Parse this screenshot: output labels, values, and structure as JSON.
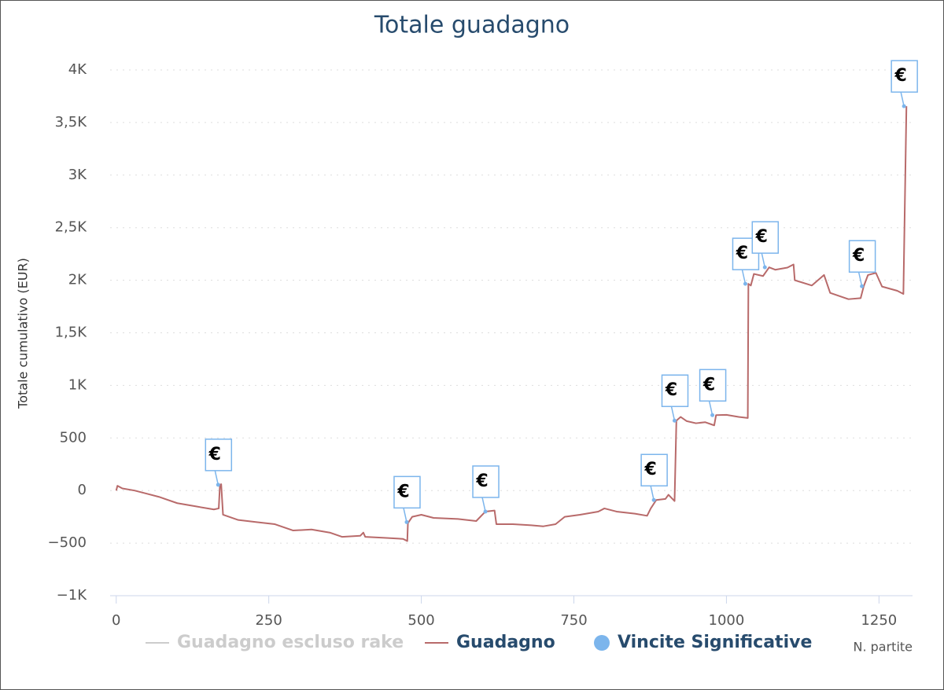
{
  "chart_data": {
    "type": "line",
    "title": "Totale guadagno",
    "y_label": "Totale cumulativo (EUR)",
    "x_label": "N. partite",
    "xlim": [
      -10,
      1305
    ],
    "xticks": [
      0,
      250,
      500,
      750,
      1000,
      1250
    ],
    "ylim": [
      -1000,
      4000
    ],
    "yticks": [
      {
        "value": -1000,
        "label": "−1K"
      },
      {
        "value": -500,
        "label": "−500"
      },
      0,
      500,
      {
        "value": 1000,
        "label": "1K"
      },
      {
        "value": 1500,
        "label": "1,5K"
      },
      {
        "value": 2000,
        "label": "2K"
      },
      {
        "value": 2500,
        "label": "2,5K"
      },
      {
        "value": 3000,
        "label": "3K"
      },
      {
        "value": 3500,
        "label": "3,5K"
      },
      {
        "value": 4000,
        "label": "4K"
      }
    ],
    "grid": true,
    "legend": "bottom",
    "series": [
      {
        "name": "Guadagno escluso rake",
        "color": "#cccccc",
        "visible": false
      },
      {
        "name": "Guadagno",
        "color": "#b86a6a",
        "type": "line",
        "x": [
          0,
          2,
          10,
          30,
          50,
          70,
          100,
          130,
          160,
          168,
          170,
          172,
          175,
          200,
          230,
          260,
          290,
          320,
          350,
          370,
          400,
          405,
          408,
          440,
          470,
          477,
          478,
          485,
          500,
          520,
          560,
          590,
          605,
          620,
          623,
          650,
          680,
          700,
          720,
          735,
          760,
          790,
          800,
          820,
          850,
          870,
          876,
          885,
          900,
          905,
          915,
          918,
          925,
          935,
          950,
          965,
          980,
          983,
          1000,
          1020,
          1035,
          1036,
          1040,
          1045,
          1060,
          1070,
          1080,
          1100,
          1110,
          1112,
          1140,
          1160,
          1170,
          1200,
          1220,
          1225,
          1232,
          1245,
          1255,
          1280,
          1290,
          1295
        ],
        "values": [
          0,
          45,
          20,
          0,
          -30,
          -60,
          -120,
          -150,
          -180,
          -170,
          55,
          60,
          -230,
          -280,
          -300,
          -320,
          -380,
          -370,
          -400,
          -440,
          -430,
          -400,
          -440,
          -450,
          -460,
          -480,
          -310,
          -250,
          -230,
          -260,
          -270,
          -290,
          -200,
          -190,
          -320,
          -320,
          -330,
          -340,
          -320,
          -250,
          -230,
          -200,
          -170,
          -200,
          -220,
          -240,
          -170,
          -90,
          -80,
          -40,
          -100,
          665,
          700,
          660,
          640,
          650,
          620,
          717,
          720,
          700,
          690,
          1966,
          1950,
          2060,
          2040,
          2123,
          2100,
          2120,
          2150,
          2000,
          1950,
          2050,
          1880,
          1820,
          1830,
          1943,
          2050,
          2070,
          1940,
          1900,
          1870,
          3655
        ]
      },
      {
        "name": "Vincite Significative",
        "color": "#7cb5ec",
        "type": "scatter",
        "x": [
          167,
          476,
          605,
          881,
          915,
          977,
          1031,
          1063,
          1222,
          1291
        ],
        "values": [
          55,
          -300,
          -200,
          -90,
          665,
          717,
          1966,
          2123,
          1943,
          3655
        ],
        "flag_labels": [
          "€",
          "€",
          "€",
          "€",
          "€",
          "€",
          "€",
          "€",
          "€",
          "€"
        ]
      }
    ]
  }
}
